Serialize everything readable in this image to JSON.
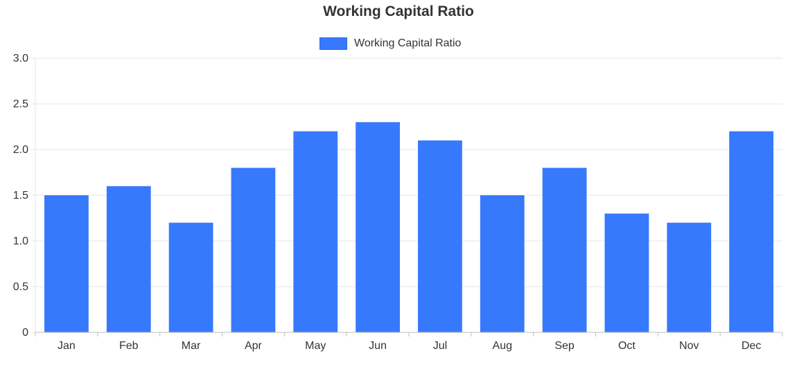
{
  "chart_data": {
    "type": "bar",
    "title": "Working Capital Ratio",
    "legend": [
      {
        "label": "Working Capital Ratio",
        "color": "#3679fc"
      }
    ],
    "legend_position": "top",
    "categories": [
      "Jan",
      "Feb",
      "Mar",
      "Apr",
      "May",
      "Jun",
      "Jul",
      "Aug",
      "Sep",
      "Oct",
      "Nov",
      "Dec"
    ],
    "series": [
      {
        "name": "Working Capital Ratio",
        "values": [
          1.5,
          1.6,
          1.2,
          1.8,
          2.2,
          2.3,
          2.1,
          1.5,
          1.8,
          1.3,
          1.2,
          2.2
        ],
        "color": "#3679fc"
      }
    ],
    "ylim": [
      0,
      3.0
    ],
    "yticks": [
      "0",
      "0.5",
      "1.0",
      "1.5",
      "2.0",
      "2.5",
      "3.0"
    ],
    "yticks_values": [
      0,
      0.5,
      1.0,
      1.5,
      2.0,
      2.5,
      3.0
    ],
    "xlabel": "",
    "ylabel": "",
    "grid": true,
    "grid_color": "#e6e6e6",
    "axis_color": "#bdbdbd"
  }
}
